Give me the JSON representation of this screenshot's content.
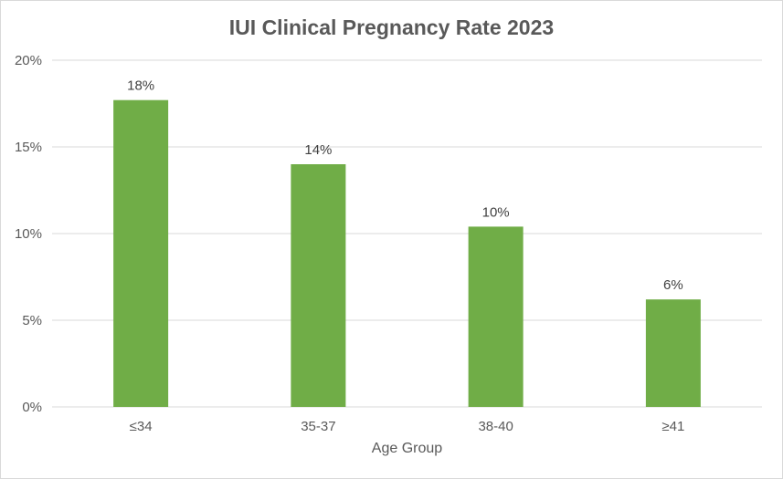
{
  "chart_data": {
    "type": "bar",
    "title": "IUI Clinical Pregnancy Rate 2023",
    "xlabel": "Age Group",
    "ylabel": "",
    "categories": [
      "≤34",
      "35-37",
      "38-40",
      "≥41"
    ],
    "values": [
      17.7,
      14.0,
      10.4,
      6.2
    ],
    "data_labels": [
      "18%",
      "14%",
      "10%",
      "6%"
    ],
    "ylim": [
      0,
      20
    ],
    "yticks": [
      0,
      5,
      10,
      15,
      20
    ],
    "ytick_labels": [
      "0%",
      "5%",
      "10%",
      "15%",
      "20%"
    ],
    "grid": true,
    "legend": "none",
    "bar_color": "#70ad47",
    "gridline_color": "#d9d9d9"
  }
}
